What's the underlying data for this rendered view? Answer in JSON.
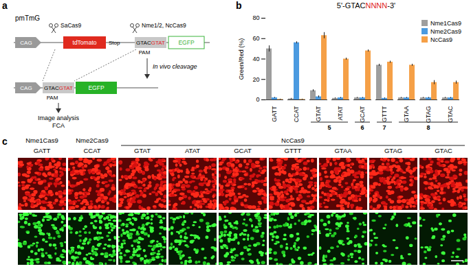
{
  "panel_labels": [
    "a",
    "b",
    "c"
  ],
  "panel_a": {
    "plasmid": "pmTmG",
    "promoter": "CAG",
    "enzymes": [
      "SaCas9",
      "Nme1/2, NcCas9"
    ],
    "reporter": "tdTomato",
    "stop": "Stop",
    "pam": "GTAC",
    "target": "GTAT",
    "pam_label": "PAM",
    "egfp": "EGFP",
    "step": "In vivo cleavage",
    "readouts": [
      "Image analysis",
      "FCA"
    ]
  },
  "chart_data": {
    "type": "bar",
    "title": "5'-GTACNNNN-3'",
    "y_label": "Green/Red (%)",
    "categories": [
      "GATT",
      "CCAT",
      "GTAT",
      "ATAT",
      "GCAT",
      "GTTT",
      "GTAA",
      "GTAG",
      "GTAC"
    ],
    "series": [
      {
        "name": "Nme1Cas9",
        "color": "#9e9e9e",
        "values": [
          50,
          1,
          9,
          1.5,
          2,
          34,
          2,
          2,
          2
        ],
        "errors": [
          3,
          0.5,
          1,
          0.5,
          0.5,
          1,
          0.5,
          0.5,
          0.5
        ]
      },
      {
        "name": "Nme2Cas9",
        "color": "#4a9ae0",
        "values": [
          2,
          56,
          3,
          2,
          2,
          1.5,
          2,
          2,
          2
        ],
        "errors": [
          0.5,
          1,
          1,
          0.5,
          0.5,
          0.5,
          0.5,
          0.5,
          0.5
        ]
      },
      {
        "name": "NcCas9",
        "color": "#f5a047",
        "values": [
          0.5,
          0.5,
          63,
          40,
          48,
          37,
          34,
          17,
          17
        ],
        "errors": [
          0.3,
          0.3,
          3,
          1,
          1,
          1,
          1,
          2,
          1.5
        ]
      }
    ],
    "groups": [
      {
        "label": 5,
        "categories": [
          "GTAT",
          "ATAT"
        ]
      },
      {
        "label": 6,
        "categories": [
          "GCAT"
        ]
      },
      {
        "label": 7,
        "categories": [
          "GTTT"
        ]
      },
      {
        "label": 8,
        "categories": [
          "GTAA",
          "GTAG",
          "GTAC"
        ]
      }
    ],
    "ylim": [
      0,
      80
    ],
    "yticks": [
      0,
      20,
      40,
      60,
      80
    ],
    "grid": false,
    "legend": "top-right"
  },
  "panel_c": {
    "columns": [
      {
        "enzyme": "Nme1Cas9",
        "pam": "GATT"
      },
      {
        "enzyme": "Nme2Cas9",
        "pam": "CCAT"
      },
      {
        "enzyme": "NcCas9",
        "pam": "GTAT"
      },
      {
        "enzyme": "NcCas9",
        "pam": "ATAT"
      },
      {
        "enzyme": "NcCas9",
        "pam": "GCAT"
      },
      {
        "enzyme": "NcCas9",
        "pam": "GTTT"
      },
      {
        "enzyme": "NcCas9",
        "pam": "GTAA"
      },
      {
        "enzyme": "NcCas9",
        "pam": "GTAG"
      },
      {
        "enzyme": "NcCas9",
        "pam": "GTAC"
      }
    ]
  }
}
